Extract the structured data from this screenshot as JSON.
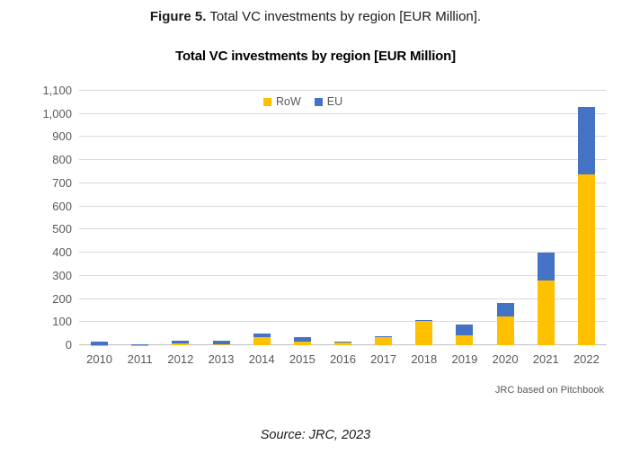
{
  "figure_caption": {
    "bold": "Figure 5.",
    "rest": "Total VC investments by region [EUR Million]."
  },
  "chart_data": {
    "type": "bar",
    "stacked": true,
    "title": "Total VC investments by region [EUR Million]",
    "categories": [
      "2010",
      "2011",
      "2012",
      "2013",
      "2014",
      "2015",
      "2016",
      "2017",
      "2018",
      "2019",
      "2020",
      "2021",
      "2022"
    ],
    "series": [
      {
        "name": "RoW",
        "color": "#FFC000",
        "values": [
          2,
          1,
          8,
          5,
          36,
          16,
          13,
          35,
          104,
          44,
          125,
          280,
          740
        ]
      },
      {
        "name": "EU",
        "color": "#4472C4",
        "values": [
          14,
          4,
          12,
          15,
          16,
          19,
          2,
          3,
          6,
          46,
          56,
          120,
          290
        ]
      }
    ],
    "ylim": [
      0,
      1100
    ],
    "ytick_interval": 100,
    "ytick_labels": [
      "0",
      "100",
      "200",
      "300",
      "400",
      "500",
      "600",
      "700",
      "800",
      "900",
      "1,000",
      "1,100"
    ],
    "xlabel": "",
    "ylabel": "",
    "grid": "horizontal",
    "legend_position": "top-inside"
  },
  "footnote": "JRC based on Pitchbook",
  "source_line": "Source: JRC, 2023",
  "colors": {
    "row_series": "#FFC000",
    "eu_series": "#4472C4",
    "gridline": "#d9d9d9",
    "axis_text": "#595959"
  }
}
